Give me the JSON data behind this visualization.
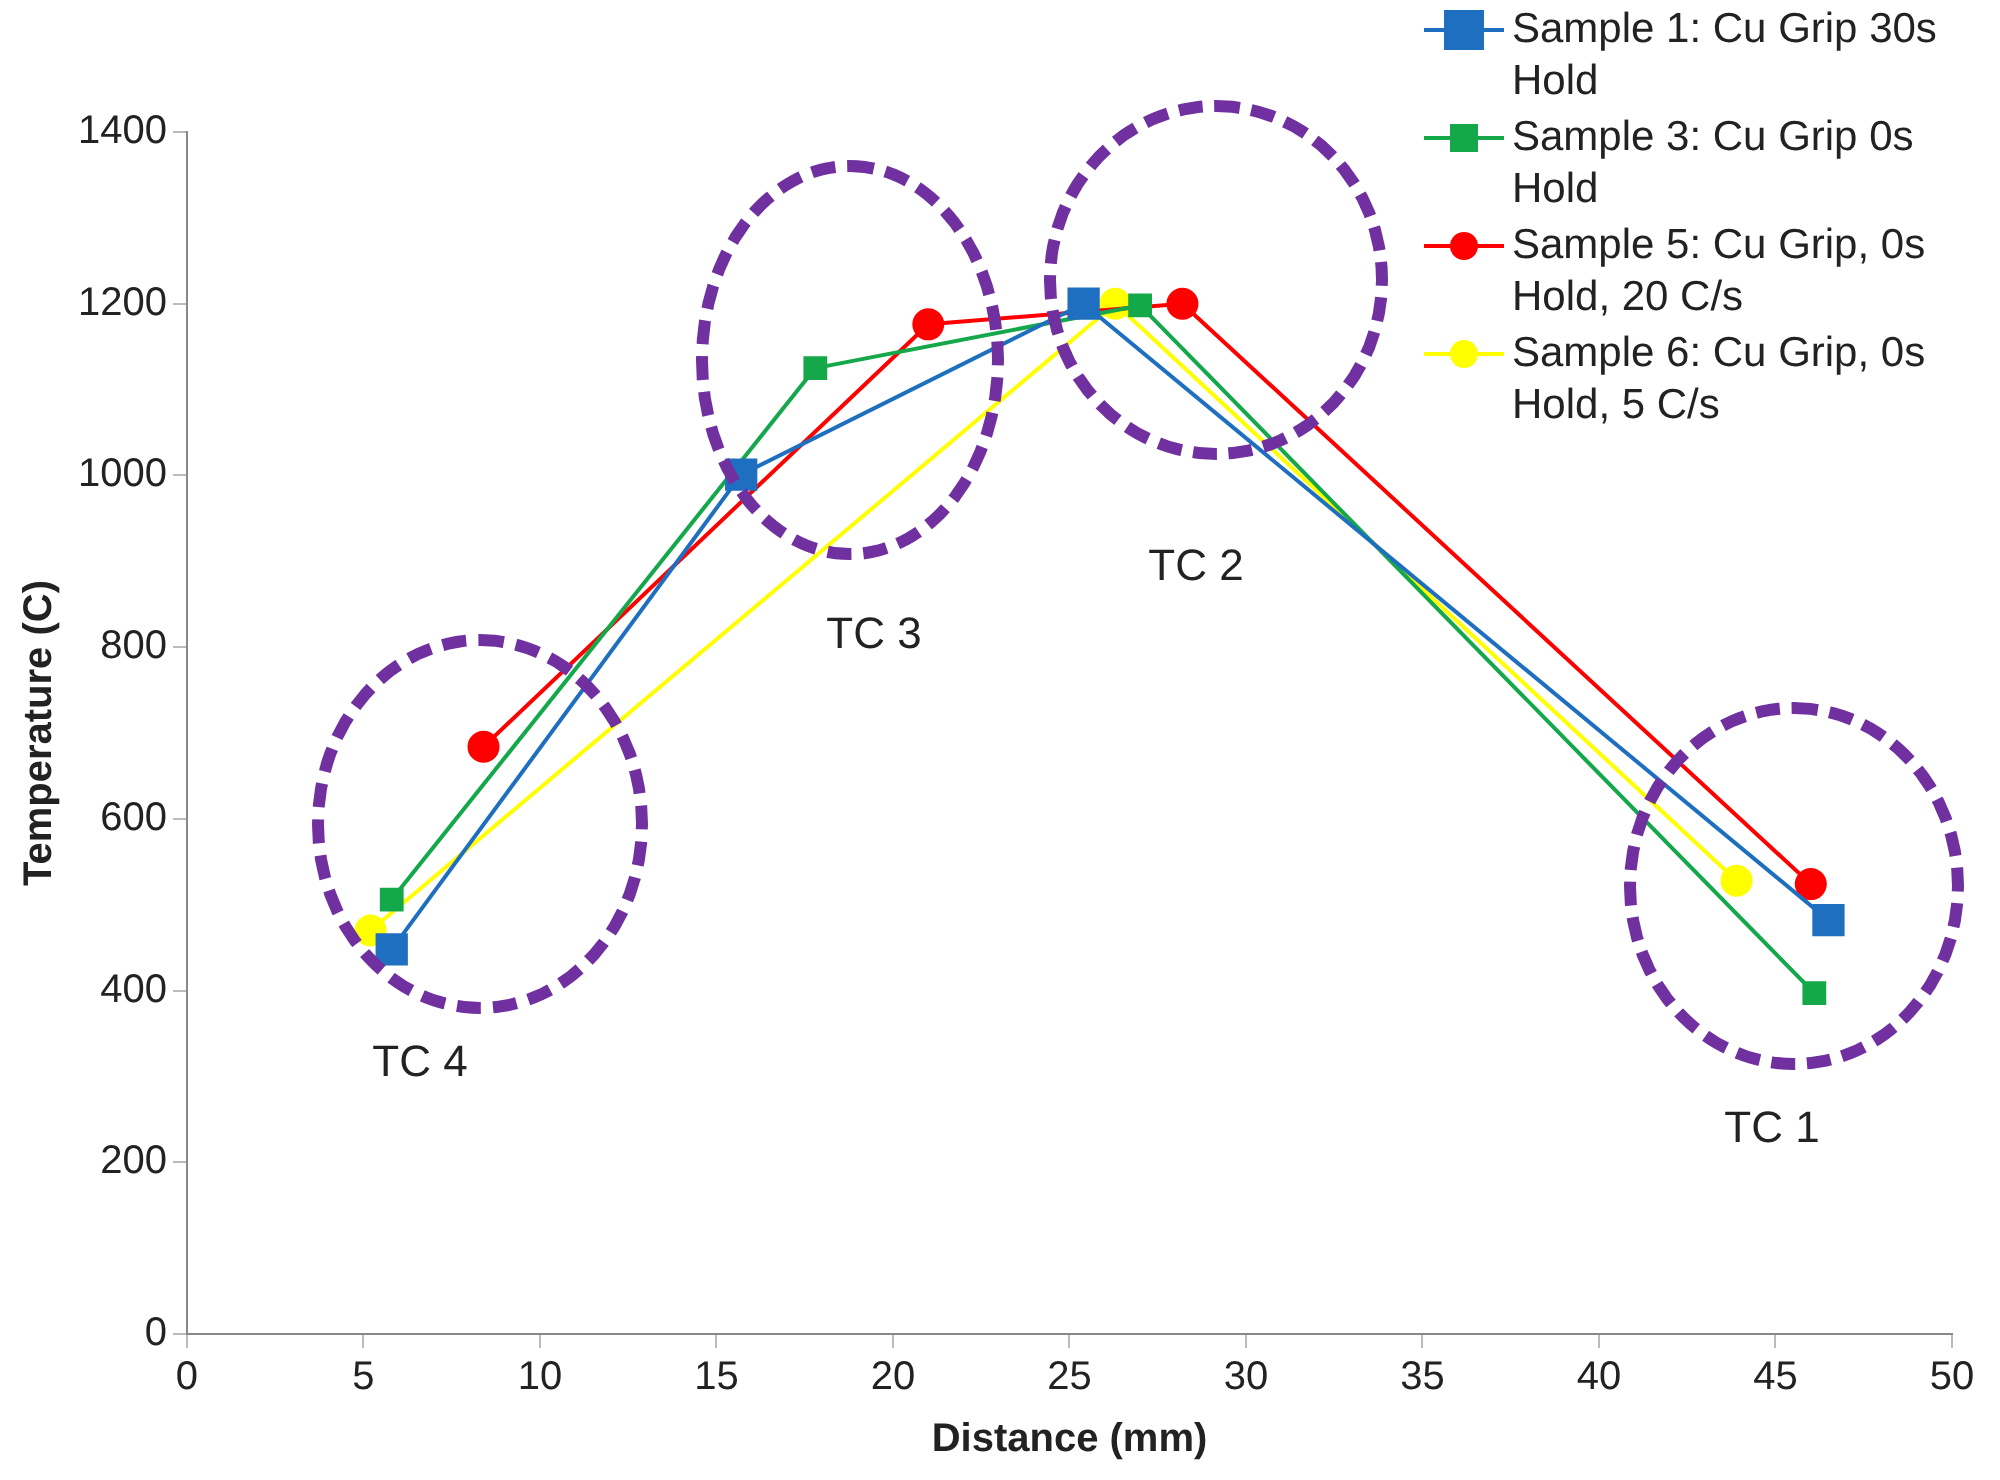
{
  "chart_data": {
    "type": "line",
    "xlabel": "Distance (mm)",
    "ylabel": "Temperature (C)",
    "xlim": [
      0,
      50
    ],
    "xticks": [
      0,
      5,
      10,
      15,
      20,
      25,
      30,
      35,
      40,
      45,
      50
    ],
    "ylim": [
      0,
      1400
    ],
    "yticks": [
      0,
      200,
      400,
      600,
      800,
      1000,
      1200,
      1400
    ],
    "legend": "top right",
    "series": [
      {
        "name": "Sample 1: Cu Grip 30s Hold",
        "color": "#1f6fc1",
        "marker": "square",
        "x": [
          5.8,
          15.7,
          25.4,
          46.5
        ],
        "values": [
          448,
          1001,
          1200,
          482
        ]
      },
      {
        "name": "Sample 3: Cu Grip 0s Hold",
        "color": "#14a84a",
        "marker": "square",
        "x": [
          5.8,
          17.8,
          27.0,
          46.1
        ],
        "values": [
          506,
          1125,
          1198,
          397
        ]
      },
      {
        "name": "Sample 5: Cu Grip, 0s Hold, 20 C/s",
        "color": "#ff0000",
        "marker": "circle",
        "x": [
          8.4,
          21.0,
          28.2,
          46.0
        ],
        "values": [
          684,
          1176,
          1200,
          524
        ]
      },
      {
        "name": "Sample 6: Cu Grip, 0s Hold, 5 C/s",
        "color": "#ffff00",
        "marker": "circle",
        "x": [
          5.2,
          26.3,
          43.9
        ],
        "values": [
          470,
          1200,
          528
        ]
      }
    ],
    "annotations": [
      "TC 4",
      "TC 3",
      "TC 2",
      "TC 1"
    ]
  }
}
